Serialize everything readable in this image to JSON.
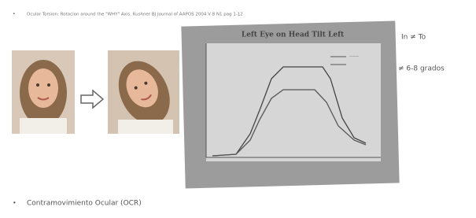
{
  "slide": {
    "bullet_top": "Ocular Torsion: Rotacion around the \"WHY\" Axis. Kushner BJ Journal of AAPOS 2004 V 8 N1 pag 1-12",
    "side_notes": [
      "In ≠ To",
      "≠ 6-8 grados"
    ],
    "figure_title": "Left Eye on Head Tilt Left",
    "bullet_bottom": "Contramovimiento Ocular (OCR)",
    "bullet_mark": "•"
  }
}
